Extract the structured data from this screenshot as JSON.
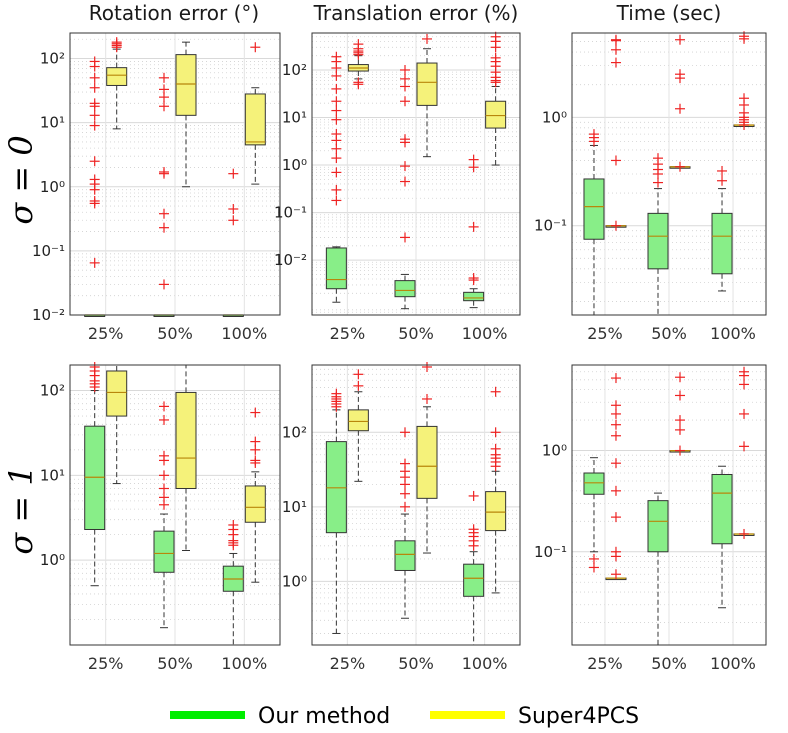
{
  "chart_data": {
    "type": "box",
    "column_titles": [
      "Rotation error (°)",
      "Translation error (%)",
      "Time (sec)"
    ],
    "row_labels": [
      "σ = 0",
      "σ = 1"
    ],
    "x_categories": [
      "25%",
      "50%",
      "100%"
    ],
    "series": [
      {
        "name": "Our method",
        "color": "#88ee88",
        "legend_color": "#00ee00"
      },
      {
        "name": "Super4PCS",
        "color": "#f5f27a",
        "legend_color": "#ffff00"
      }
    ],
    "y_scale": "log",
    "grid": true,
    "legend_position": "bottom",
    "panels": [
      {
        "row": 0,
        "col": 0,
        "ylim": [
          0.01,
          250
        ],
        "yticks": [
          {
            "v": 0.01,
            "label": "10⁻²"
          },
          {
            "v": 0.1,
            "label": "10⁻¹"
          },
          {
            "v": 1,
            "label": "10⁰"
          },
          {
            "v": 10,
            "label": "10¹"
          },
          {
            "v": 100,
            "label": "10²"
          }
        ],
        "boxes": [
          {
            "category": "25%",
            "series": "Our method",
            "whisker_low": 0.01,
            "q1": 0.01,
            "median": 0.01,
            "q3": 0.01,
            "whisker_high": 0.01,
            "outliers": [
              0.065,
              0.55,
              0.6,
              0.9,
              1.1,
              1.3,
              2.5,
              9,
              13,
              18,
              20,
              35,
              50,
              75,
              90
            ]
          },
          {
            "category": "25%",
            "series": "Super4PCS",
            "whisker_low": 8,
            "q1": 38,
            "median": 55,
            "q3": 72,
            "whisker_high": 140,
            "outliers": [
              150,
              160,
              170,
              180
            ]
          },
          {
            "category": "50%",
            "series": "Our method",
            "whisker_low": 0.01,
            "q1": 0.01,
            "median": 0.01,
            "q3": 0.01,
            "whisker_high": 0.01,
            "outliers": [
              0.03,
              0.23,
              0.38,
              1.6,
              1.7,
              18,
              25,
              33,
              50
            ]
          },
          {
            "category": "50%",
            "series": "Super4PCS",
            "whisker_low": 1,
            "q1": 13,
            "median": 40,
            "q3": 115,
            "whisker_high": 180,
            "outliers": []
          },
          {
            "category": "100%",
            "series": "Our method",
            "whisker_low": 0.01,
            "q1": 0.01,
            "median": 0.01,
            "q3": 0.01,
            "whisker_high": 0.01,
            "outliers": [
              0.3,
              0.45,
              1.6
            ]
          },
          {
            "category": "100%",
            "series": "Super4PCS",
            "whisker_low": 1.1,
            "q1": 4.5,
            "median": 5,
            "q3": 28,
            "whisker_high": 35,
            "outliers": [
              150
            ]
          }
        ]
      },
      {
        "row": 0,
        "col": 1,
        "ylim": [
          0.0007,
          600
        ],
        "yticks": [
          {
            "v": 0.01,
            "label": "10⁻²"
          },
          {
            "v": 0.1,
            "label": "10⁻¹"
          },
          {
            "v": 1,
            "label": "10⁰"
          },
          {
            "v": 10,
            "label": "10¹"
          },
          {
            "v": 100,
            "label": "10²"
          }
        ],
        "boxes": [
          {
            "category": "25%",
            "series": "Our method",
            "whisker_low": 0.0013,
            "q1": 0.0025,
            "median": 0.0039,
            "q3": 0.018,
            "whisker_high": 0.019,
            "outliers": [
              0.18,
              0.3,
              0.7,
              1.4,
              2.2,
              3.3,
              4.5,
              9,
              14,
              22,
              40,
              75,
              110,
              150,
              190
            ]
          },
          {
            "category": "25%",
            "series": "Super4PCS",
            "whisker_low": 65,
            "q1": 95,
            "median": 110,
            "q3": 130,
            "whisker_high": 200,
            "outliers": [
              50,
              55,
              210,
              230,
              250,
              280,
              350
            ]
          },
          {
            "category": "50%",
            "series": "Our method",
            "whisker_low": 0.00095,
            "q1": 0.0017,
            "median": 0.0023,
            "q3": 0.0037,
            "whisker_high": 0.005,
            "outliers": [
              0.03,
              0.45,
              0.95,
              3,
              3.5,
              22,
              45,
              65,
              100
            ]
          },
          {
            "category": "50%",
            "series": "Super4PCS",
            "whisker_low": 1.5,
            "q1": 18,
            "median": 55,
            "q3": 140,
            "whisker_high": 280,
            "outliers": [
              450
            ]
          },
          {
            "category": "100%",
            "series": "Our method",
            "whisker_low": 0.001,
            "q1": 0.0014,
            "median": 0.0016,
            "q3": 0.0021,
            "whisker_high": 0.0025,
            "outliers": [
              0.0038,
              0.0042,
              0.05,
              0.9,
              1.3
            ]
          },
          {
            "category": "100%",
            "series": "Super4PCS",
            "whisker_low": 1,
            "q1": 6,
            "median": 11,
            "q3": 22,
            "whisker_high": 45,
            "outliers": [
              55,
              60,
              70,
              90,
              120,
              150,
              180,
              300,
              400,
              500
            ]
          }
        ]
      },
      {
        "row": 0,
        "col": 2,
        "ylim": [
          0.015,
          6
        ],
        "yticks": [
          {
            "v": 0.1,
            "label": "10⁻¹"
          },
          {
            "v": 1,
            "label": "10⁰"
          }
        ],
        "boxes": [
          {
            "category": "25%",
            "series": "Our method",
            "whisker_low": 0.015,
            "q1": 0.075,
            "median": 0.15,
            "q3": 0.27,
            "whisker_high": 0.55,
            "outliers": [
              0.6,
              0.65,
              0.7
            ]
          },
          {
            "category": "25%",
            "series": "Super4PCS",
            "whisker_low": 0.1,
            "q1": 0.1,
            "median": 0.1,
            "q3": 0.1,
            "whisker_high": 0.1,
            "outliers": [
              0.1,
              0.4,
              3.2,
              4.2,
              5.1,
              5.2
            ]
          },
          {
            "category": "50%",
            "series": "Our method",
            "whisker_low": 0.015,
            "q1": 0.04,
            "median": 0.08,
            "q3": 0.13,
            "whisker_high": 0.22,
            "outliers": [
              0.25,
              0.3,
              0.33,
              0.37,
              0.42
            ]
          },
          {
            "category": "50%",
            "series": "Super4PCS",
            "whisker_low": 0.35,
            "q1": 0.35,
            "median": 0.35,
            "q3": 0.35,
            "whisker_high": 0.35,
            "outliers": [
              0.35,
              1.2,
              2.3,
              2.5,
              5.2
            ]
          },
          {
            "category": "100%",
            "series": "Our method",
            "whisker_low": 0.025,
            "q1": 0.036,
            "median": 0.08,
            "q3": 0.13,
            "whisker_high": 0.22,
            "outliers": [
              0.26,
              0.32
            ]
          },
          {
            "category": "100%",
            "series": "Super4PCS",
            "whisker_low": 0.85,
            "q1": 0.85,
            "median": 0.85,
            "q3": 0.85,
            "whisker_high": 0.85,
            "outliers": [
              0.85,
              0.9,
              0.95,
              1.0,
              1.1,
              1.3,
              1.5,
              5.3,
              5.6
            ]
          }
        ]
      },
      {
        "row": 1,
        "col": 0,
        "ylim": [
          0.1,
          200
        ],
        "yticks": [
          {
            "v": 1,
            "label": "10⁰"
          },
          {
            "v": 10,
            "label": "10¹"
          },
          {
            "v": 100,
            "label": "10²"
          }
        ],
        "boxes": [
          {
            "category": "25%",
            "series": "Our method",
            "whisker_low": 0.5,
            "q1": 2.3,
            "median": 9.5,
            "q3": 38,
            "whisker_high": 100,
            "outliers": [
              110,
              120,
              130,
              150,
              170,
              190
            ]
          },
          {
            "category": "25%",
            "series": "Super4PCS",
            "whisker_low": 8,
            "q1": 50,
            "median": 95,
            "q3": 170,
            "whisker_high": 200,
            "outliers": []
          },
          {
            "category": "50%",
            "series": "Our method",
            "whisker_low": 0.16,
            "q1": 0.72,
            "median": 1.2,
            "q3": 2.2,
            "whisker_high": 3.5,
            "outliers": [
              4.5,
              5.5,
              7,
              10,
              15,
              17,
              45,
              65
            ]
          },
          {
            "category": "50%",
            "series": "Super4PCS",
            "whisker_low": 1.3,
            "q1": 7,
            "median": 16,
            "q3": 95,
            "whisker_high": 200,
            "outliers": []
          },
          {
            "category": "100%",
            "series": "Our method",
            "whisker_low": 0.1,
            "q1": 0.43,
            "median": 0.6,
            "q3": 0.85,
            "whisker_high": 1.2,
            "outliers": [
              1.5,
              1.6,
              1.7,
              2,
              2.3,
              2.6
            ]
          },
          {
            "category": "100%",
            "series": "Super4PCS",
            "whisker_low": 0.55,
            "q1": 2.8,
            "median": 4.2,
            "q3": 7.5,
            "whisker_high": 11,
            "outliers": [
              14,
              15,
              20,
              25,
              55
            ]
          }
        ]
      },
      {
        "row": 1,
        "col": 1,
        "ylim": [
          0.14,
          800
        ],
        "yticks": [
          {
            "v": 1,
            "label": "10⁰"
          },
          {
            "v": 10,
            "label": "10¹"
          },
          {
            "v": 100,
            "label": "10²"
          }
        ],
        "boxes": [
          {
            "category": "25%",
            "series": "Our method",
            "whisker_low": 0.2,
            "q1": 4.5,
            "median": 18,
            "q3": 75,
            "whisker_high": 200,
            "outliers": [
              220,
              240,
              260,
              280,
              300,
              330
            ]
          },
          {
            "category": "25%",
            "series": "Super4PCS",
            "whisker_low": 22,
            "q1": 105,
            "median": 140,
            "q3": 200,
            "whisker_high": 350,
            "outliers": [
              420,
              600
            ]
          },
          {
            "category": "50%",
            "series": "Our method",
            "whisker_low": 0.32,
            "q1": 1.4,
            "median": 2.3,
            "q3": 3.5,
            "whisker_high": 8,
            "outliers": [
              10,
              15,
              20,
              25,
              30,
              38,
              100
            ]
          },
          {
            "category": "50%",
            "series": "Super4PCS",
            "whisker_low": 2.4,
            "q1": 13,
            "median": 35,
            "q3": 120,
            "whisker_high": 220,
            "outliers": [
              280,
              800
            ]
          },
          {
            "category": "100%",
            "series": "Our method",
            "whisker_low": 0.14,
            "q1": 0.63,
            "median": 1.1,
            "q3": 1.7,
            "whisker_high": 2.5,
            "outliers": [
              3,
              3.5,
              4,
              4.5,
              5,
              14
            ]
          },
          {
            "category": "100%",
            "series": "Super4PCS",
            "whisker_low": 0.7,
            "q1": 4.8,
            "median": 8.5,
            "q3": 16,
            "whisker_high": 30,
            "outliers": [
              35,
              40,
              45,
              50,
              60,
              100,
              350
            ]
          }
        ]
      },
      {
        "row": 1,
        "col": 2,
        "ylim": [
          0.012,
          7
        ],
        "yticks": [
          {
            "v": 0.1,
            "label": "10⁻¹"
          },
          {
            "v": 1,
            "label": "10⁰"
          }
        ],
        "boxes": [
          {
            "category": "25%",
            "series": "Our method",
            "whisker_low": 0.1,
            "q1": 0.37,
            "median": 0.48,
            "q3": 0.6,
            "whisker_high": 0.85,
            "outliers": [
              0.07,
              0.085
            ]
          },
          {
            "category": "25%",
            "series": "Super4PCS",
            "whisker_low": 0.055,
            "q1": 0.055,
            "median": 0.055,
            "q3": 0.055,
            "whisker_high": 0.055,
            "outliers": [
              0.06,
              0.09,
              0.1,
              0.22,
              0.4,
              0.75,
              1.4,
              1.8,
              2.3,
              2.8,
              5.2
            ]
          },
          {
            "category": "50%",
            "series": "Our method",
            "whisker_low": 0.012,
            "q1": 0.1,
            "median": 0.2,
            "q3": 0.32,
            "whisker_high": 0.38,
            "outliers": []
          },
          {
            "category": "50%",
            "series": "Super4PCS",
            "whisker_low": 1,
            "q1": 1,
            "median": 1,
            "q3": 1,
            "whisker_high": 1,
            "outliers": [
              1,
              1.6,
              2,
              3.5,
              5.3
            ]
          },
          {
            "category": "100%",
            "series": "Our method",
            "whisker_low": 0.028,
            "q1": 0.12,
            "median": 0.38,
            "q3": 0.58,
            "whisker_high": 0.7,
            "outliers": []
          },
          {
            "category": "100%",
            "series": "Super4PCS",
            "whisker_low": 0.15,
            "q1": 0.15,
            "median": 0.15,
            "q3": 0.15,
            "whisker_high": 0.15,
            "outliers": [
              0.15,
              1.1,
              2.3,
              4.5,
              5.5,
              6
            ]
          }
        ]
      }
    ]
  }
}
